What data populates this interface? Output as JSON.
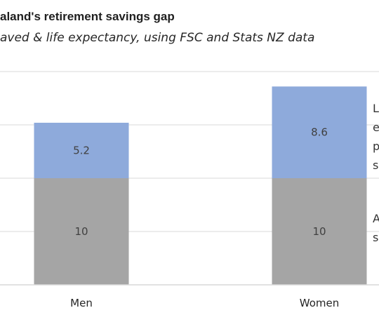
{
  "chart_data": {
    "type": "bar",
    "stacked": true,
    "title": "aland's retirement savings gap",
    "subtitle": "aved & life expectancy, using FSC and Stats NZ data",
    "categories": [
      "Men",
      "Women"
    ],
    "series": [
      {
        "values": [
          10,
          10
        ],
        "color": "#a5a5a5",
        "data_labels": [
          "10",
          "10"
        ]
      },
      {
        "values": [
          5.2,
          8.6
        ],
        "color": "#8eaadb",
        "data_labels": [
          "5.2",
          "8.6"
        ]
      }
    ],
    "legend_fragments": [
      [
        "L",
        "e",
        "p",
        "sa"
      ],
      [
        "A",
        "s"
      ]
    ],
    "ylim": [
      0,
      20
    ],
    "grid": true,
    "label_color": "#404040",
    "grid_color": "#d9d9d9"
  }
}
